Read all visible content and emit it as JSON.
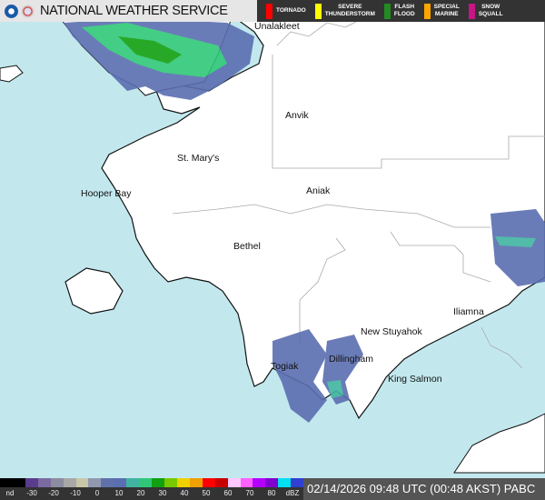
{
  "header": {
    "title": "NATIONAL WEATHER SERVICE",
    "logos": [
      "noaa-logo",
      "nws-logo"
    ]
  },
  "warnings": [
    {
      "label": "TORNADO",
      "color": "#ff0000"
    },
    {
      "label": "SEVERE\nTHUNDERSTORM",
      "color": "#ffff00"
    },
    {
      "label": "FLASH\nFLOOD",
      "color": "#228b22"
    },
    {
      "label": "SPECIAL\nMARINE",
      "color": "#ffa500"
    },
    {
      "label": "SNOW\nSQUALL",
      "color": "#c71585"
    }
  ],
  "places": [
    "Unalakleet",
    "Anvik",
    "St. Mary's",
    "Hooper Bay",
    "Aniak",
    "Bethel",
    "Iliamna",
    "New Stuyahok",
    "Dillingham",
    "Togiak",
    "King Salmon"
  ],
  "legend": {
    "ticks": [
      "nd",
      "-30",
      "-20",
      "-10",
      "0",
      "10",
      "20",
      "30",
      "40",
      "50",
      "60",
      "70",
      "80",
      "dBZ"
    ],
    "colors": [
      "#000000",
      "#000000",
      "#5a3c8c",
      "#7a6aa0",
      "#8c8ca0",
      "#a8a8a8",
      "#c8c8a8",
      "#9098b0",
      "#6070a8",
      "#5a6eb0",
      "#40b4a0",
      "#30c878",
      "#10a010",
      "#78c800",
      "#f0d000",
      "#f0a000",
      "#ff0000",
      "#c80000",
      "#ffc8ff",
      "#ff60ff",
      "#b400ff",
      "#8000d0",
      "#00e0f0",
      "#3040d0"
    ]
  },
  "timestamp": "02/14/2026 09:48 UTC (00:48 AKST) PABC",
  "colors": {
    "ocean": "#c2e8ee",
    "land": "#ffffff"
  }
}
